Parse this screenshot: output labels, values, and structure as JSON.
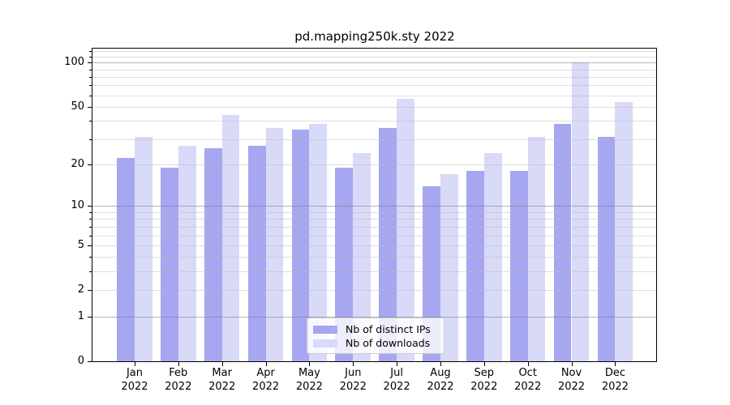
{
  "title": "pd.mapping250k.sty 2022",
  "chart_data": {
    "type": "bar",
    "title": "pd.mapping250k.sty 2022",
    "categories": [
      "Jan",
      "Feb",
      "Mar",
      "Apr",
      "May",
      "Jun",
      "Jul",
      "Aug",
      "Sep",
      "Oct",
      "Nov",
      "Dec"
    ],
    "year": "2022",
    "series": [
      {
        "name": "Nb of distinct IPs",
        "color": "#a6a6f1",
        "values": [
          22,
          19,
          26,
          27,
          35,
          19,
          36,
          14,
          18,
          18,
          38,
          31
        ]
      },
      {
        "name": "Nb of downloads",
        "color": "#d9d9f8",
        "values": [
          31,
          27,
          44,
          36,
          38,
          24,
          57,
          17,
          24,
          31,
          100,
          54
        ]
      }
    ],
    "xlabel": "",
    "ylabel": "",
    "yscale": "log1p",
    "ylim": [
      0,
      125
    ],
    "ytick_labels": [
      0,
      1,
      2,
      5,
      10,
      20,
      50,
      100
    ],
    "major_grid_values": [
      1,
      10,
      100
    ],
    "minor_grid_values": [
      2,
      3,
      4,
      5,
      6,
      7,
      8,
      9,
      20,
      30,
      40,
      50,
      60,
      70,
      80,
      90,
      110,
      120
    ],
    "grid": true,
    "legend_position": "lower center"
  },
  "colors": {
    "background": "#ffffff",
    "axis": "#000000",
    "major_grid": "#787878",
    "minor_grid": "#bebebe",
    "legend_border": "#cccccc"
  }
}
